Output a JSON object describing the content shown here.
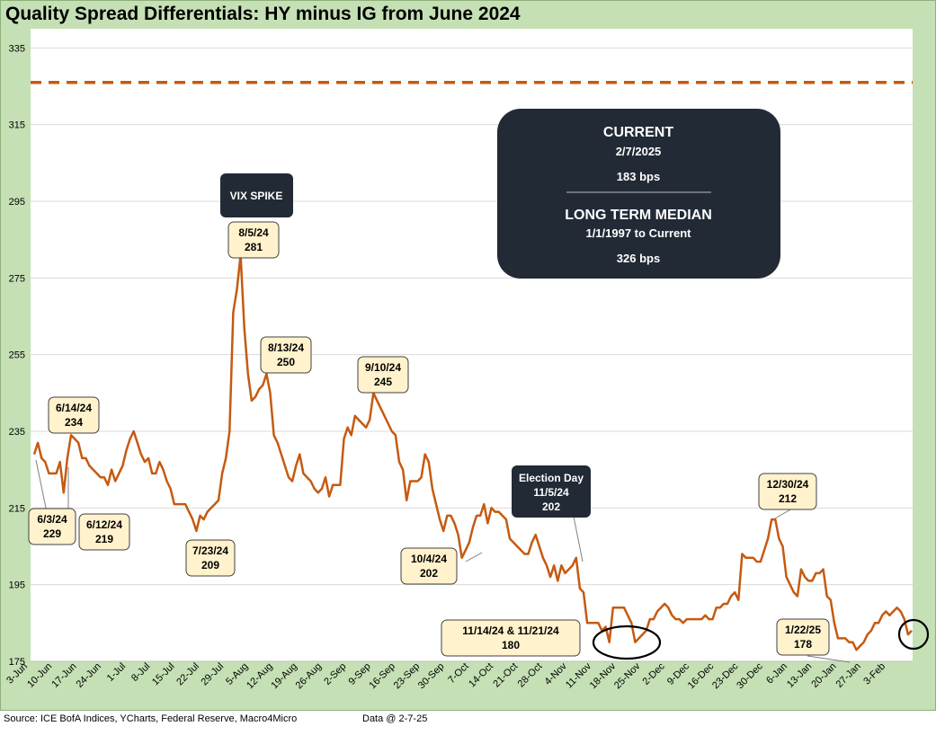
{
  "page": {
    "title": "Quality Spread Differentials: HY minus IG from June 2024"
  },
  "chart_data": {
    "type": "line",
    "ylim": [
      175,
      340
    ],
    "yticks": [
      175,
      195,
      215,
      235,
      255,
      275,
      295,
      315,
      335
    ],
    "xticks": [
      "3-Jun",
      "10-Jun",
      "17-Jun",
      "24-Jun",
      "1-Jul",
      "8-Jul",
      "15-Jul",
      "22-Jul",
      "29-Jul",
      "5-Aug",
      "12-Aug",
      "19-Aug",
      "26-Aug",
      "2-Sep",
      "9-Sep",
      "16-Sep",
      "23-Sep",
      "30-Sep",
      "7-Oct",
      "14-Oct",
      "21-Oct",
      "28-Oct",
      "4-Nov",
      "11-Nov",
      "18-Nov",
      "25-Nov",
      "2-Dec",
      "9-Dec",
      "16-Dec",
      "23-Dec",
      "30-Dec",
      "6-Jan",
      "13-Jan",
      "20-Jan",
      "27-Jan",
      "3-Feb"
    ],
    "median_value": 326,
    "colors": {
      "line": "#c55a11",
      "median": "#c55a11",
      "dark_box": "#222a35",
      "label_box": "#fff2cc"
    },
    "series": [
      {
        "values": [
          229,
          232,
          228,
          227,
          224,
          224,
          224,
          227,
          219,
          228,
          234,
          233,
          232,
          228,
          228,
          226,
          225,
          224,
          223,
          223,
          221,
          225,
          222,
          224,
          226,
          230,
          233,
          235,
          232,
          229,
          227,
          228,
          224,
          224,
          227,
          225,
          222,
          220,
          216,
          216,
          216,
          216,
          214,
          212,
          209,
          213,
          212,
          214,
          215,
          216,
          217,
          224,
          228,
          235,
          266,
          272,
          281,
          262,
          250,
          243,
          244,
          246,
          247,
          250,
          245,
          234,
          232,
          229,
          226,
          223,
          222,
          226,
          229,
          224,
          223,
          222,
          220,
          219,
          220,
          223,
          218,
          221,
          221,
          221,
          233,
          236,
          234,
          239,
          238,
          237,
          236,
          238,
          245,
          243,
          241,
          239,
          237,
          235,
          234,
          227,
          225,
          217,
          222,
          222,
          222,
          223,
          229,
          227,
          220,
          216,
          212,
          209,
          213,
          213,
          211,
          208,
          202,
          204,
          206,
          210,
          213,
          213,
          216,
          211,
          215,
          214,
          214,
          213,
          212,
          207,
          206,
          205,
          204,
          203,
          203,
          206,
          208,
          205,
          202,
          200,
          197,
          200,
          196,
          200,
          198,
          199,
          200,
          202,
          194,
          193,
          185,
          185,
          185,
          185,
          183,
          184,
          180,
          189,
          189,
          189,
          189,
          187,
          185,
          180,
          181,
          182,
          183,
          186,
          186,
          188,
          189,
          190,
          189,
          187,
          186,
          186,
          185,
          186,
          186,
          186,
          186,
          186,
          187,
          186,
          186,
          189,
          189,
          190,
          190,
          192,
          193,
          191,
          203,
          202,
          202,
          202,
          201,
          201,
          204,
          207,
          212,
          212,
          207,
          205,
          197,
          195,
          193,
          192,
          199,
          197,
          196,
          196,
          198,
          198,
          199,
          192,
          191,
          185,
          181,
          181,
          181,
          180,
          180,
          178,
          179,
          180,
          182,
          183,
          185,
          185,
          187,
          188,
          187,
          188,
          189,
          188,
          186,
          182,
          183
        ]
      }
    ],
    "annotations": [
      {
        "line1": "6/3/24",
        "line2": "229"
      },
      {
        "line1": "6/14/24",
        "line2": "234"
      },
      {
        "line1": "6/12/24",
        "line2": "219"
      },
      {
        "line1": "7/23/24",
        "line2": "209"
      },
      {
        "line1": "8/5/24",
        "line2": "281"
      },
      {
        "line1": "8/13/24",
        "line2": "250"
      },
      {
        "line1": "9/10/24",
        "line2": "245"
      },
      {
        "line1": "10/4/24",
        "line2": "202"
      },
      {
        "line1": "11/14/24 & 11/21/24",
        "line2": "180"
      },
      {
        "line1": "12/30/24",
        "line2": "212"
      },
      {
        "line1": "1/22/25",
        "line2": "178"
      }
    ],
    "callouts": {
      "vix": "VIX SPIKE",
      "election": {
        "line1": "Election Day",
        "line2": "11/5/24",
        "line3": "202"
      },
      "current": {
        "heading": "CURRENT",
        "date": "2/7/2025",
        "value": "183 bps"
      },
      "median": {
        "heading": "LONG TERM MEDIAN",
        "range": "1/1/1997 to Current",
        "value": "326 bps"
      }
    }
  },
  "footer": {
    "source": "Source: ICE BofA Indices, YCharts, Federal Reserve, Macro4Micro",
    "data_date": "Data @ 2-7-25"
  }
}
